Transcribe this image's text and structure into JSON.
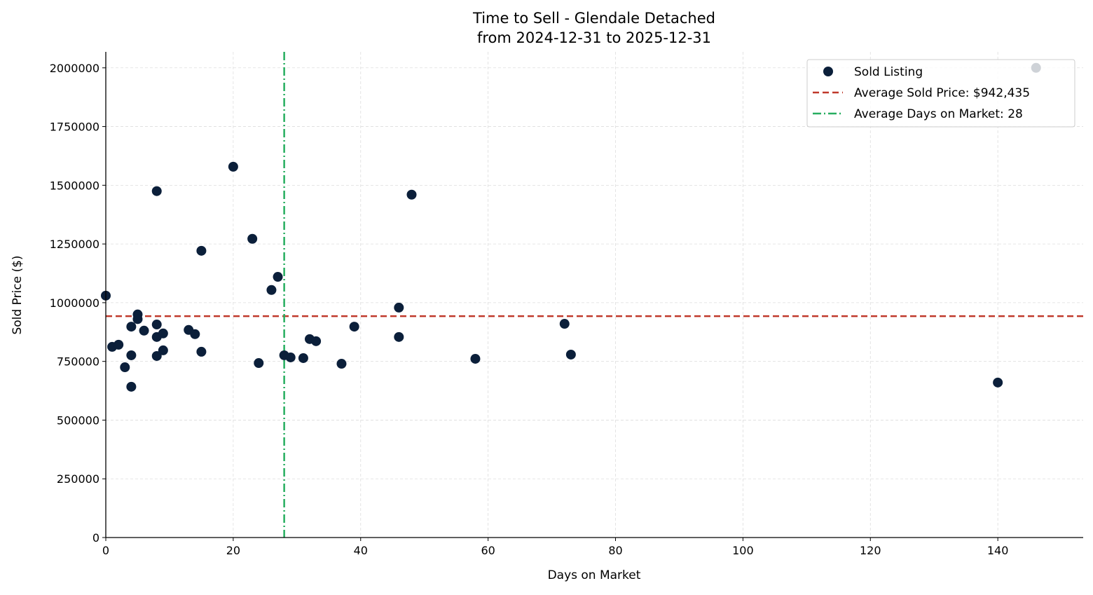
{
  "chart_data": {
    "type": "scatter",
    "title": "Time to Sell - Glendale Detached",
    "subtitle": "from 2024-12-31 to 2025-12-31",
    "xlabel": "Days on Market",
    "ylabel": "Sold Price ($)",
    "xlim": [
      0,
      153.4
    ],
    "ylim": [
      0,
      2068000
    ],
    "xticks": [
      0,
      20,
      40,
      60,
      80,
      100,
      120,
      140
    ],
    "yticks": [
      0,
      250000,
      500000,
      750000,
      1000000,
      1250000,
      1500000,
      1750000,
      2000000
    ],
    "grid": true,
    "legend_position": "top-right",
    "colors": {
      "points": "#0b1f3a",
      "avg_price": "#c0392b",
      "avg_days": "#27ae60"
    },
    "series": [
      {
        "name": "Sold Listing",
        "points": [
          [
            0,
            1030000
          ],
          [
            1,
            812000
          ],
          [
            2,
            821000
          ],
          [
            3,
            725000
          ],
          [
            4,
            898000
          ],
          [
            4,
            776000
          ],
          [
            4,
            642000
          ],
          [
            5,
            950000
          ],
          [
            5,
            930000
          ],
          [
            6,
            881000
          ],
          [
            8,
            907000
          ],
          [
            8,
            854000
          ],
          [
            8,
            773000
          ],
          [
            8,
            1475000
          ],
          [
            9,
            869000
          ],
          [
            9,
            797000
          ],
          [
            13,
            884000
          ],
          [
            14,
            866000
          ],
          [
            15,
            1221000
          ],
          [
            15,
            791000
          ],
          [
            20,
            1579000
          ],
          [
            23,
            1272000
          ],
          [
            24,
            743000
          ],
          [
            26,
            1054000
          ],
          [
            27,
            1110000
          ],
          [
            28,
            776000
          ],
          [
            29,
            767000
          ],
          [
            31,
            764000
          ],
          [
            32,
            845000
          ],
          [
            33,
            836000
          ],
          [
            37,
            740000
          ],
          [
            39,
            898000
          ],
          [
            46,
            979000
          ],
          [
            46,
            854000
          ],
          [
            48,
            1460000
          ],
          [
            58,
            761000
          ],
          [
            72,
            910000
          ],
          [
            73,
            779000
          ],
          [
            140,
            660000
          ],
          [
            146,
            2000000
          ]
        ]
      }
    ],
    "reference_lines": [
      {
        "name": "Average Sold Price: $942,435",
        "orientation": "horizontal",
        "value": 942435,
        "style": "dashed"
      },
      {
        "name": "Average Days on Market: 28",
        "orientation": "vertical",
        "value": 28,
        "style": "dashdot"
      }
    ]
  }
}
